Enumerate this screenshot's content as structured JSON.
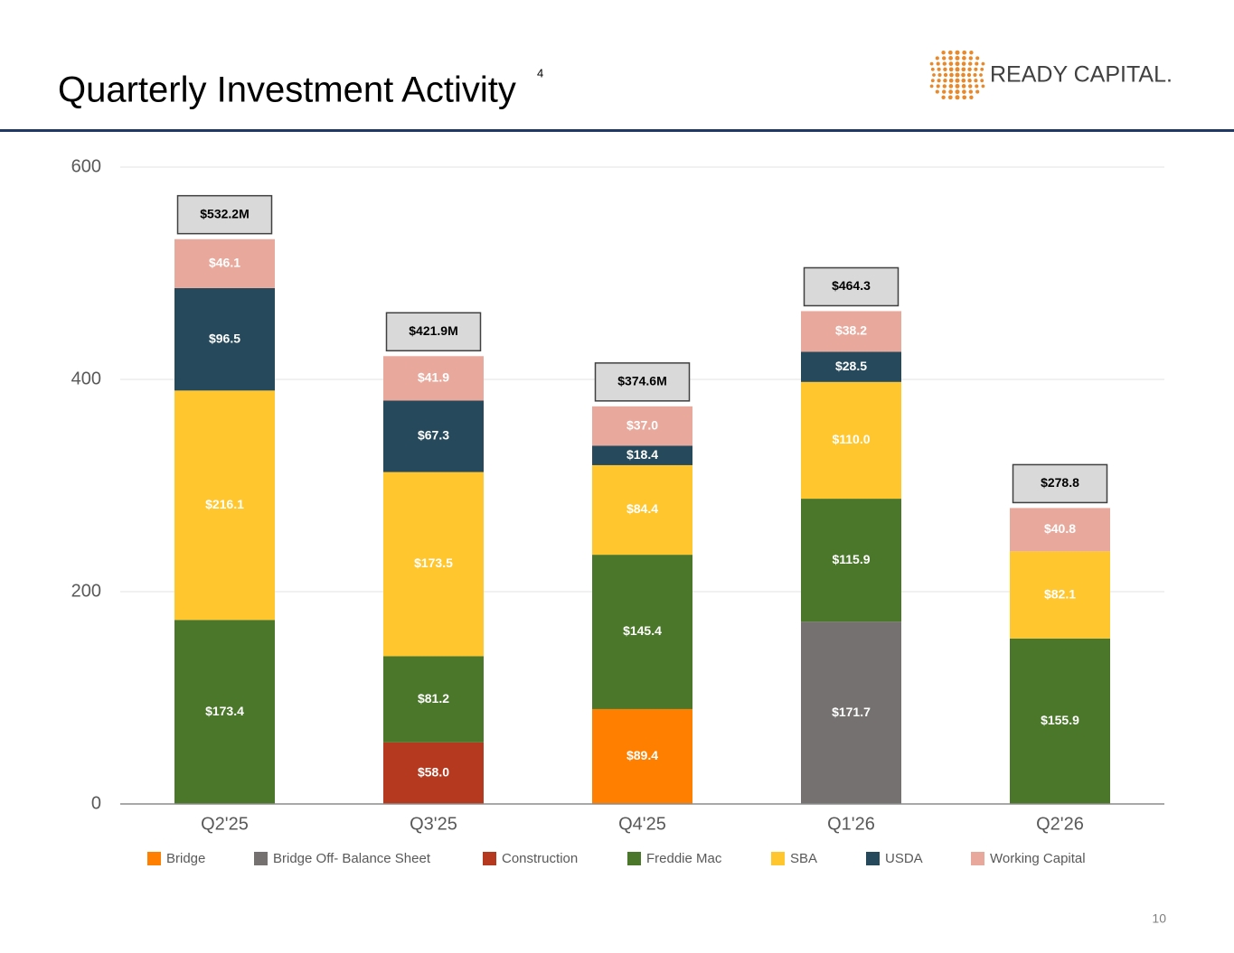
{
  "chart_data": {
    "type": "stacked-bar",
    "title": "Quarterly Investment Activity",
    "title_note": "4",
    "categories": [
      "Q2'25",
      "Q3'25",
      "Q4'25",
      "Q1'26",
      "Q2'26"
    ],
    "series": [
      {
        "name": "Bridge",
        "color": "#ff8000",
        "values": [
          null,
          null,
          89.4,
          null,
          null
        ],
        "value_labels": [
          null,
          null,
          "$89.4",
          null,
          null
        ]
      },
      {
        "name": "Bridge Off- Balance Sheet",
        "color": "#767171",
        "values": [
          null,
          null,
          null,
          171.7,
          null
        ],
        "value_labels": [
          null,
          null,
          null,
          "$171.7",
          null
        ]
      },
      {
        "name": "Construction",
        "color": "#b5391f",
        "values": [
          null,
          58.0,
          null,
          null,
          null
        ],
        "value_labels": [
          null,
          "$58.0",
          null,
          null,
          null
        ]
      },
      {
        "name": "Freddie Mac",
        "color": "#4a7729",
        "values": [
          173.4,
          81.2,
          145.4,
          115.9,
          155.9
        ],
        "value_labels": [
          "$173.4",
          "$81.2",
          "$145.4",
          "$115.9",
          "$155.9"
        ]
      },
      {
        "name": "SBA",
        "color": "#ffc62e",
        "values": [
          216.1,
          173.5,
          84.4,
          110.0,
          82.1
        ],
        "value_labels": [
          "$216.1",
          "$173.5",
          "$84.4",
          "$110.0",
          "$82.1"
        ]
      },
      {
        "name": "USDA",
        "color": "#264a5b",
        "values": [
          96.5,
          67.3,
          18.4,
          28.5,
          null
        ],
        "value_labels": [
          "$96.5",
          "$67.3",
          "$18.4",
          "$28.5",
          null
        ]
      },
      {
        "name": "Working Capital",
        "color": "#e8a99c",
        "values": [
          46.1,
          41.9,
          37.0,
          38.2,
          40.8
        ],
        "value_labels": [
          "$46.1",
          "$41.9",
          "$37.0",
          "$38.2",
          "$40.8"
        ]
      }
    ],
    "totals": {
      "values": [
        532.2,
        421.9,
        374.6,
        464.3,
        278.8
      ],
      "value_labels": [
        "$532.2M",
        "$421.9M",
        "$374.6M",
        "$464.3",
        "$278.8"
      ]
    },
    "ylim": [
      0,
      600
    ],
    "yticks": [
      0,
      200,
      400,
      600
    ],
    "grid": true
  },
  "logo": "READY CAPITAL.",
  "page_number": "10"
}
